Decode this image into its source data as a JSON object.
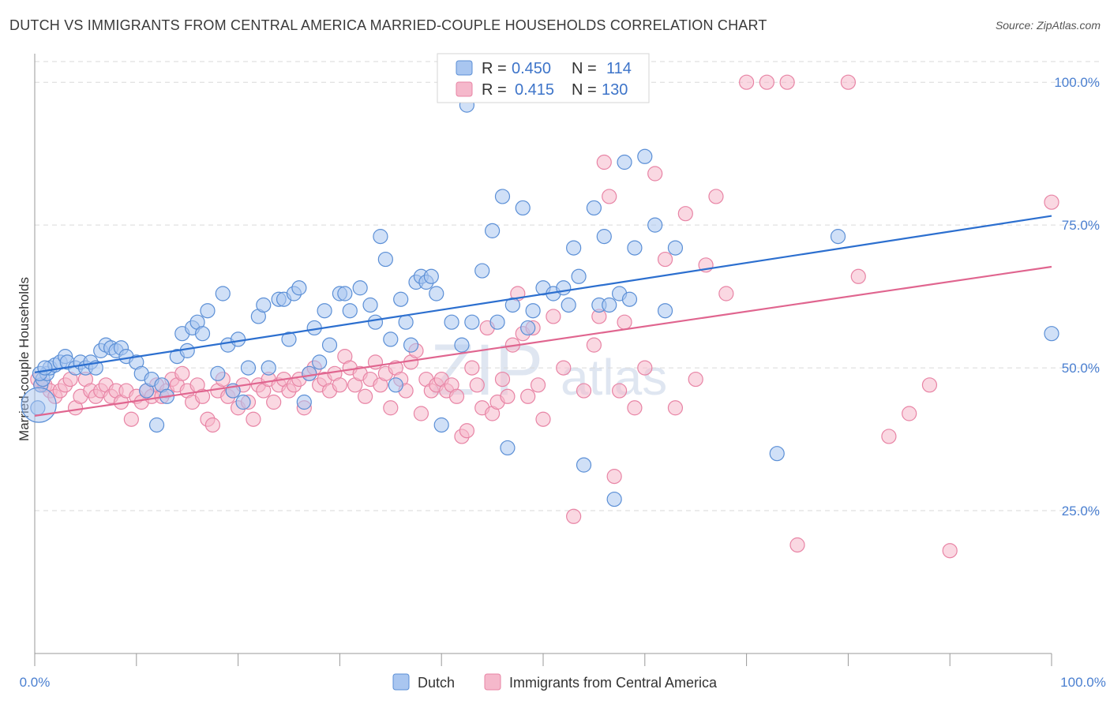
{
  "title": "DUTCH VS IMMIGRANTS FROM CENTRAL AMERICA MARRIED-COUPLE HOUSEHOLDS CORRELATION CHART",
  "source": "Source: ZipAtlas.com",
  "watermark": {
    "zip": "ZIP",
    "atlas": "atlas"
  },
  "colors": {
    "dutch_fill": "#a9c6f0",
    "dutch_stroke": "#5b8fd6",
    "dutch_line": "#2c6fcf",
    "imm_fill": "#f5b8cb",
    "imm_stroke": "#e884a5",
    "imm_line": "#e0658f",
    "grid": "#d9d9d9",
    "axis": "#999999"
  },
  "stats_box": {
    "rows": [
      {
        "r_label": "R =",
        "r_value": "0.450",
        "n_label": "N =",
        "n_value": "114"
      },
      {
        "r_label": "R =",
        "r_value": "0.415",
        "n_label": "N =",
        "n_value": "130"
      }
    ]
  },
  "chart_data": {
    "type": "scatter",
    "title": "DUTCH VS IMMIGRANTS FROM CENTRAL AMERICA MARRIED-COUPLE HOUSEHOLDS CORRELATION CHART",
    "xlabel": "",
    "ylabel": "Married-couple Households",
    "xlim": [
      0,
      100
    ],
    "ylim": [
      0,
      105
    ],
    "x_tick_labels": [
      "0.0%",
      "100.0%"
    ],
    "y_ticks": [
      25,
      50,
      75,
      100
    ],
    "y_tick_labels": [
      "25.0%",
      "50.0%",
      "75.0%",
      "100.0%"
    ],
    "grid": true,
    "legend_position": "bottom-center",
    "series": [
      {
        "name": "Dutch",
        "R": 0.45,
        "N": 114,
        "trend": {
          "x": [
            0,
            100
          ],
          "y": [
            49.2,
            76.6
          ]
        },
        "points": [
          [
            0.3,
            43
          ],
          [
            0.6,
            47
          ],
          [
            0.8,
            48
          ],
          [
            1.2,
            49
          ],
          [
            1.5,
            50
          ],
          [
            2,
            50.5
          ],
          [
            2.5,
            51
          ],
          [
            3,
            52
          ],
          [
            3.2,
            51
          ],
          [
            4,
            50
          ],
          [
            4.5,
            51
          ],
          [
            5,
            50
          ],
          [
            5.5,
            51
          ],
          [
            6,
            50
          ],
          [
            6.5,
            53
          ],
          [
            7,
            54
          ],
          [
            7.5,
            53.5
          ],
          [
            8,
            53
          ],
          [
            8.5,
            53.5
          ],
          [
            9,
            52
          ],
          [
            10,
            51
          ],
          [
            10.5,
            49
          ],
          [
            11,
            46
          ],
          [
            11.5,
            48
          ],
          [
            12,
            40
          ],
          [
            12.5,
            47
          ],
          [
            13,
            45
          ],
          [
            14,
            52
          ],
          [
            14.5,
            56
          ],
          [
            15,
            53
          ],
          [
            15.5,
            57
          ],
          [
            16,
            58
          ],
          [
            16.5,
            56
          ],
          [
            17,
            60
          ],
          [
            18,
            49
          ],
          [
            18.5,
            63
          ],
          [
            19,
            54
          ],
          [
            19.5,
            46
          ],
          [
            20,
            55
          ],
          [
            20.5,
            44
          ],
          [
            21,
            50
          ],
          [
            22,
            59
          ],
          [
            22.5,
            61
          ],
          [
            23,
            50
          ],
          [
            24,
            62
          ],
          [
            24.5,
            62
          ],
          [
            25,
            55
          ],
          [
            25.5,
            63
          ],
          [
            26,
            64
          ],
          [
            26.5,
            44
          ],
          [
            27,
            49
          ],
          [
            27.5,
            57
          ],
          [
            28,
            51
          ],
          [
            28.5,
            60
          ],
          [
            29,
            54
          ],
          [
            30,
            63
          ],
          [
            30.5,
            63
          ],
          [
            31,
            60
          ],
          [
            32,
            64
          ],
          [
            33,
            61
          ],
          [
            33.5,
            58
          ],
          [
            34,
            73
          ],
          [
            34.5,
            69
          ],
          [
            35,
            55
          ],
          [
            35.5,
            47
          ],
          [
            36,
            62
          ],
          [
            36.5,
            58
          ],
          [
            37,
            54
          ],
          [
            37.5,
            65
          ],
          [
            38,
            66
          ],
          [
            38.5,
            65
          ],
          [
            39,
            66
          ],
          [
            39.5,
            63
          ],
          [
            40,
            40
          ],
          [
            41,
            58
          ],
          [
            42,
            54
          ],
          [
            42.5,
            96
          ],
          [
            43,
            58
          ],
          [
            44,
            67
          ],
          [
            45,
            74
          ],
          [
            45.5,
            58
          ],
          [
            46,
            80
          ],
          [
            46.5,
            36
          ],
          [
            47,
            61
          ],
          [
            48,
            78
          ],
          [
            48.5,
            57
          ],
          [
            49,
            60
          ],
          [
            50,
            64
          ],
          [
            51,
            63
          ],
          [
            52,
            64
          ],
          [
            52.5,
            61
          ],
          [
            53,
            71
          ],
          [
            53.5,
            66
          ],
          [
            54,
            33
          ],
          [
            55,
            78
          ],
          [
            55.5,
            61
          ],
          [
            56,
            73
          ],
          [
            56.5,
            61
          ],
          [
            57,
            27
          ],
          [
            57.5,
            63
          ],
          [
            58,
            86
          ],
          [
            58.5,
            62
          ],
          [
            59,
            71
          ],
          [
            60,
            87
          ],
          [
            61,
            75
          ],
          [
            62,
            60
          ],
          [
            63,
            71
          ],
          [
            73,
            35
          ],
          [
            79,
            73
          ],
          [
            100,
            56
          ],
          [
            0.5,
            49
          ],
          [
            1,
            50
          ]
        ]
      },
      {
        "name": "Immigrants from Central America",
        "R": 0.415,
        "N": 130,
        "trend": {
          "x": [
            0,
            100
          ],
          "y": [
            41.6,
            67.7
          ]
        },
        "points": [
          [
            0.3,
            48
          ],
          [
            0.6,
            47
          ],
          [
            1,
            47
          ],
          [
            1.5,
            46
          ],
          [
            2,
            45
          ],
          [
            2.5,
            46
          ],
          [
            3,
            47
          ],
          [
            3.5,
            48
          ],
          [
            4,
            43
          ],
          [
            4.5,
            45
          ],
          [
            5,
            48
          ],
          [
            5.5,
            46
          ],
          [
            6,
            45
          ],
          [
            6.5,
            46
          ],
          [
            7,
            47
          ],
          [
            7.5,
            45
          ],
          [
            8,
            46
          ],
          [
            8.5,
            44
          ],
          [
            9,
            46
          ],
          [
            9.5,
            41
          ],
          [
            10,
            45
          ],
          [
            10.5,
            44
          ],
          [
            11,
            46
          ],
          [
            11.5,
            45
          ],
          [
            12,
            47
          ],
          [
            12.5,
            45
          ],
          [
            13,
            46
          ],
          [
            13.5,
            48
          ],
          [
            14,
            47
          ],
          [
            14.5,
            49
          ],
          [
            15,
            46
          ],
          [
            15.5,
            44
          ],
          [
            16,
            47
          ],
          [
            16.5,
            45
          ],
          [
            17,
            41
          ],
          [
            17.5,
            40
          ],
          [
            18,
            46
          ],
          [
            18.5,
            48
          ],
          [
            19,
            45
          ],
          [
            19.5,
            46
          ],
          [
            20,
            43
          ],
          [
            20.5,
            47
          ],
          [
            21,
            44
          ],
          [
            21.5,
            41
          ],
          [
            22,
            47
          ],
          [
            22.5,
            46
          ],
          [
            23,
            48
          ],
          [
            23.5,
            44
          ],
          [
            24,
            47
          ],
          [
            24.5,
            48
          ],
          [
            25,
            46
          ],
          [
            25.5,
            47
          ],
          [
            26,
            48
          ],
          [
            26.5,
            43
          ],
          [
            27,
            49
          ],
          [
            27.5,
            50
          ],
          [
            28,
            47
          ],
          [
            28.5,
            48
          ],
          [
            29,
            46
          ],
          [
            29.5,
            49
          ],
          [
            30,
            47
          ],
          [
            30.5,
            52
          ],
          [
            31,
            50
          ],
          [
            31.5,
            47
          ],
          [
            32,
            49
          ],
          [
            32.5,
            45
          ],
          [
            33,
            48
          ],
          [
            33.5,
            51
          ],
          [
            34,
            47
          ],
          [
            34.5,
            49
          ],
          [
            35,
            43
          ],
          [
            35.5,
            50
          ],
          [
            36,
            48
          ],
          [
            36.5,
            46
          ],
          [
            37,
            51
          ],
          [
            37.5,
            53
          ],
          [
            38,
            42
          ],
          [
            38.5,
            48
          ],
          [
            39,
            46
          ],
          [
            39.5,
            47
          ],
          [
            40,
            48
          ],
          [
            40.5,
            46
          ],
          [
            41,
            47
          ],
          [
            41.5,
            45
          ],
          [
            42,
            38
          ],
          [
            42.5,
            39
          ],
          [
            43,
            50
          ],
          [
            43.5,
            47
          ],
          [
            44,
            43
          ],
          [
            44.5,
            57
          ],
          [
            45,
            42
          ],
          [
            45.5,
            44
          ],
          [
            46,
            48
          ],
          [
            46.5,
            45
          ],
          [
            47,
            54
          ],
          [
            47.5,
            63
          ],
          [
            48,
            56
          ],
          [
            48.5,
            45
          ],
          [
            49,
            57
          ],
          [
            49.5,
            47
          ],
          [
            50,
            41
          ],
          [
            51,
            59
          ],
          [
            52,
            50
          ],
          [
            53,
            24
          ],
          [
            54,
            46
          ],
          [
            55,
            54
          ],
          [
            55.5,
            59
          ],
          [
            56,
            86
          ],
          [
            56.5,
            80
          ],
          [
            57,
            31
          ],
          [
            57.5,
            46
          ],
          [
            58,
            58
          ],
          [
            59,
            43
          ],
          [
            60,
            50
          ],
          [
            61,
            84
          ],
          [
            62,
            69
          ],
          [
            63,
            43
          ],
          [
            64,
            77
          ],
          [
            65,
            48
          ],
          [
            66,
            68
          ],
          [
            67,
            80
          ],
          [
            68,
            63
          ],
          [
            70,
            100
          ],
          [
            72,
            100
          ],
          [
            74,
            100
          ],
          [
            75,
            19
          ],
          [
            80,
            100
          ],
          [
            81,
            66
          ],
          [
            84,
            38
          ],
          [
            86,
            42
          ],
          [
            88,
            47
          ],
          [
            90,
            18
          ],
          [
            100,
            79
          ]
        ]
      }
    ]
  },
  "legend": [
    {
      "label": "Dutch"
    },
    {
      "label": "Immigrants from Central America"
    }
  ]
}
